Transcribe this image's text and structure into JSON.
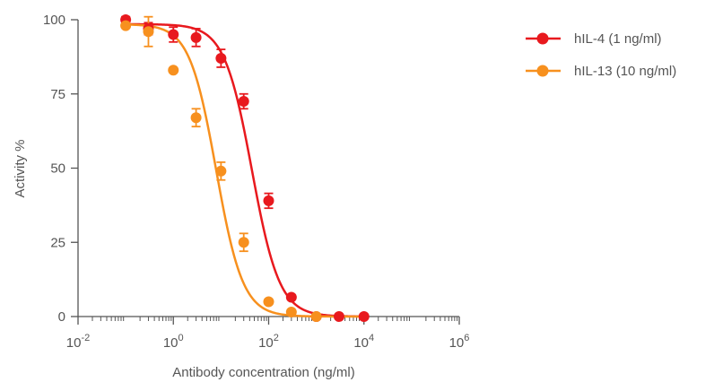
{
  "chart_data": {
    "type": "scatter",
    "title": "",
    "xlabel": "Antibody concentration (ng/ml)",
    "ylabel": "Activity %",
    "xscale": "log",
    "xlim": [
      0.01,
      1000000
    ],
    "ylim": [
      0,
      100
    ],
    "x_ticks": [
      {
        "base": "10",
        "exp": "-2",
        "value": 0.01
      },
      {
        "base": "10",
        "exp": "0",
        "value": 1
      },
      {
        "base": "10",
        "exp": "2",
        "value": 100
      },
      {
        "base": "10",
        "exp": "4",
        "value": 10000
      },
      {
        "base": "10",
        "exp": "6",
        "value": 1000000
      }
    ],
    "y_ticks": [
      "0",
      "25",
      "50",
      "75",
      "100"
    ],
    "grid": false,
    "legend_position": "top-right",
    "series": [
      {
        "name": "hIL-4 (1 ng/ml)",
        "color": "#e8191e",
        "x": [
          0.1,
          0.3,
          1,
          3,
          10,
          30,
          100,
          300,
          1000,
          3000,
          10000
        ],
        "y": [
          100,
          97,
          95,
          94,
          87,
          72.5,
          39,
          6.5,
          0,
          0,
          0
        ],
        "error": [
          1,
          2,
          2.5,
          3,
          3,
          2.5,
          2.5,
          0,
          0,
          0,
          0
        ],
        "fit": {
          "top": 98.5,
          "bottom": 0,
          "log_ic50": 1.65,
          "hill": 1.5
        }
      },
      {
        "name": "hIL-13 (10 ng/ml)",
        "color": "#f7901e",
        "x": [
          0.1,
          0.3,
          1,
          3,
          10,
          30,
          100,
          300,
          1000
        ],
        "y": [
          98,
          96,
          83,
          67,
          49,
          25,
          5,
          1.5,
          0
        ],
        "error": [
          0,
          5,
          0,
          3,
          3,
          3,
          0,
          0,
          0
        ],
        "fit": {
          "top": 98.5,
          "bottom": 0,
          "log_ic50": 0.9,
          "hill": 1.55
        }
      }
    ]
  }
}
